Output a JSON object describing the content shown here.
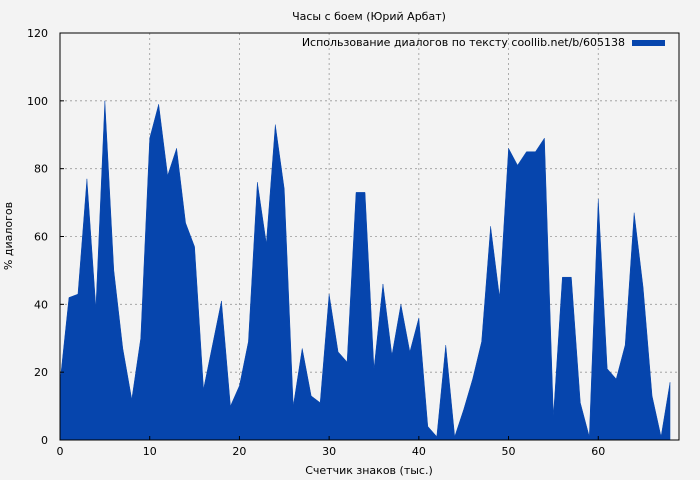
{
  "chart_data": {
    "type": "area",
    "title": "Часы с боем (Юрий Арбат)",
    "xlabel": "Счетчик знаков (тыс.)",
    "ylabel": "% диалогов",
    "xlim": [
      0,
      69
    ],
    "ylim": [
      0,
      120
    ],
    "xticks": [
      0,
      10,
      20,
      30,
      40,
      50,
      60
    ],
    "yticks": [
      0,
      20,
      40,
      60,
      80,
      100,
      120
    ],
    "grid": true,
    "legend_position": "top-right",
    "series": [
      {
        "name": "Использование диалогов по тексту coollib.net/b/605138",
        "color": "#0645ad",
        "x": [
          0,
          1,
          2,
          3,
          4,
          5,
          6,
          7,
          8,
          9,
          10,
          11,
          12,
          13,
          14,
          15,
          16,
          17,
          18,
          19,
          20,
          21,
          22,
          23,
          24,
          25,
          26,
          27,
          28,
          29,
          30,
          31,
          32,
          33,
          34,
          35,
          36,
          37,
          38,
          39,
          40,
          41,
          42,
          43,
          44,
          45,
          46,
          47,
          48,
          49,
          50,
          51,
          52,
          53,
          54,
          55,
          56,
          57,
          58,
          59,
          60,
          61,
          62,
          63,
          64,
          65,
          66,
          67,
          68
        ],
        "y": [
          17,
          42,
          43,
          77,
          39,
          100,
          50,
          27,
          12,
          30,
          89,
          99,
          78,
          86,
          64,
          57,
          15,
          28,
          41,
          10,
          16,
          29,
          76,
          58,
          93,
          74,
          10,
          27,
          13,
          11,
          43,
          26,
          23,
          73,
          73,
          21,
          46,
          25,
          40,
          26,
          36,
          4,
          1,
          28,
          1,
          9,
          18,
          29,
          63,
          42,
          86,
          81,
          85,
          85,
          89,
          7,
          48,
          48,
          11,
          1,
          71,
          21,
          18,
          28,
          67,
          45,
          13,
          1,
          17
        ]
      }
    ]
  }
}
